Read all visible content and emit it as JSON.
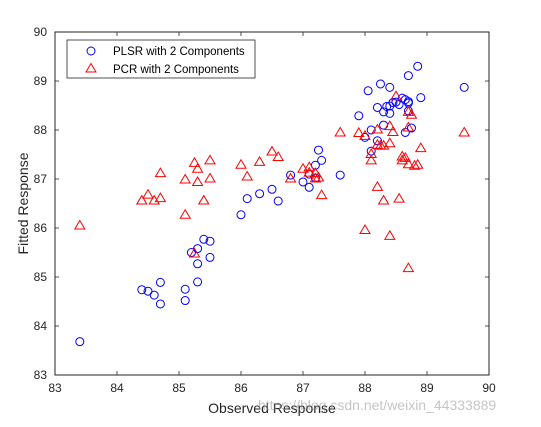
{
  "watermark": "https://blog.csdn.net/weixin_44333889",
  "chart_data": {
    "type": "scatter",
    "xlabel": "Observed Response",
    "ylabel": "Fitted Response",
    "xlim": [
      83,
      90
    ],
    "ylim": [
      83,
      90
    ],
    "xticks": [
      "83",
      "84",
      "85",
      "86",
      "87",
      "88",
      "89",
      "90"
    ],
    "yticks": [
      "83",
      "84",
      "85",
      "86",
      "87",
      "88",
      "89",
      "90"
    ],
    "grid": false,
    "legend_position": "top-left",
    "series": [
      {
        "name": "PLSR with 2 Components",
        "marker": "circle",
        "color": "#0000ff",
        "points": [
          [
            83.4,
            83.68
          ],
          [
            84.4,
            84.74
          ],
          [
            84.5,
            84.71
          ],
          [
            84.6,
            84.63
          ],
          [
            84.7,
            84.45
          ],
          [
            84.7,
            84.89
          ],
          [
            85.1,
            84.52
          ],
          [
            85.1,
            84.75
          ],
          [
            85.3,
            84.9
          ],
          [
            85.3,
            85.27
          ],
          [
            85.2,
            85.5
          ],
          [
            85.3,
            85.58
          ],
          [
            85.4,
            85.77
          ],
          [
            85.5,
            85.73
          ],
          [
            85.5,
            85.4
          ],
          [
            86.0,
            86.27
          ],
          [
            86.1,
            86.6
          ],
          [
            86.3,
            86.7
          ],
          [
            86.5,
            86.79
          ],
          [
            86.6,
            86.55
          ],
          [
            86.8,
            87.08
          ],
          [
            87.0,
            86.94
          ],
          [
            87.1,
            86.83
          ],
          [
            87.1,
            87.1
          ],
          [
            87.2,
            87.28
          ],
          [
            87.2,
            87.02
          ],
          [
            87.3,
            87.38
          ],
          [
            87.25,
            87.59
          ],
          [
            87.6,
            87.08
          ],
          [
            87.9,
            88.29
          ],
          [
            88.0,
            87.85
          ],
          [
            88.05,
            88.8
          ],
          [
            88.1,
            88.0
          ],
          [
            88.1,
            87.57
          ],
          [
            88.2,
            87.78
          ],
          [
            88.2,
            88.46
          ],
          [
            88.25,
            88.94
          ],
          [
            88.3,
            88.1
          ],
          [
            88.3,
            88.37
          ],
          [
            88.35,
            88.48
          ],
          [
            88.4,
            88.49
          ],
          [
            88.4,
            88.34
          ],
          [
            88.4,
            88.87
          ],
          [
            88.45,
            88.56
          ],
          [
            88.5,
            88.57
          ],
          [
            88.55,
            88.52
          ],
          [
            88.6,
            88.65
          ],
          [
            88.65,
            88.62
          ],
          [
            88.65,
            87.95
          ],
          [
            88.7,
            88.58
          ],
          [
            88.7,
            88.55
          ],
          [
            88.7,
            89.11
          ],
          [
            88.7,
            88.39
          ],
          [
            88.75,
            88.04
          ],
          [
            88.85,
            89.3
          ],
          [
            88.9,
            88.66
          ],
          [
            89.6,
            88.87
          ]
        ]
      },
      {
        "name": "PCR with 2 Components",
        "marker": "triangle",
        "color": "#ff0000",
        "points": [
          [
            83.4,
            86.05
          ],
          [
            84.4,
            86.56
          ],
          [
            84.5,
            86.68
          ],
          [
            84.6,
            86.56
          ],
          [
            84.7,
            86.61
          ],
          [
            84.7,
            87.12
          ],
          [
            85.1,
            86.99
          ],
          [
            85.1,
            86.27
          ],
          [
            85.25,
            87.33
          ],
          [
            85.3,
            87.21
          ],
          [
            85.3,
            86.94
          ],
          [
            85.25,
            85.48
          ],
          [
            85.4,
            86.56
          ],
          [
            85.5,
            87.38
          ],
          [
            85.5,
            87.01
          ],
          [
            86.0,
            87.29
          ],
          [
            86.1,
            87.05
          ],
          [
            86.3,
            87.35
          ],
          [
            86.5,
            87.56
          ],
          [
            86.6,
            87.45
          ],
          [
            86.8,
            87.01
          ],
          [
            87.0,
            87.21
          ],
          [
            87.1,
            87.13
          ],
          [
            87.1,
            87.24
          ],
          [
            87.2,
            87.12
          ],
          [
            87.2,
            87.01
          ],
          [
            87.3,
            86.67
          ],
          [
            87.25,
            87.03
          ],
          [
            87.6,
            87.95
          ],
          [
            87.9,
            87.94
          ],
          [
            88.0,
            85.96
          ],
          [
            88.0,
            87.88
          ],
          [
            88.1,
            87.38
          ],
          [
            88.1,
            87.51
          ],
          [
            88.2,
            87.7
          ],
          [
            88.2,
            86.84
          ],
          [
            88.2,
            88.01
          ],
          [
            88.25,
            87.68
          ],
          [
            88.3,
            86.56
          ],
          [
            88.3,
            87.68
          ],
          [
            88.4,
            87.73
          ],
          [
            88.4,
            85.84
          ],
          [
            88.4,
            88.08
          ],
          [
            88.45,
            87.96
          ],
          [
            88.5,
            88.69
          ],
          [
            88.55,
            86.6
          ],
          [
            88.6,
            87.46
          ],
          [
            88.6,
            87.38
          ],
          [
            88.65,
            87.43
          ],
          [
            88.7,
            87.3
          ],
          [
            88.7,
            88.05
          ],
          [
            88.7,
            85.18
          ],
          [
            88.7,
            88.37
          ],
          [
            88.75,
            88.31
          ],
          [
            88.8,
            87.27
          ],
          [
            88.85,
            87.29
          ],
          [
            88.9,
            87.63
          ],
          [
            89.6,
            87.95
          ]
        ]
      }
    ]
  }
}
